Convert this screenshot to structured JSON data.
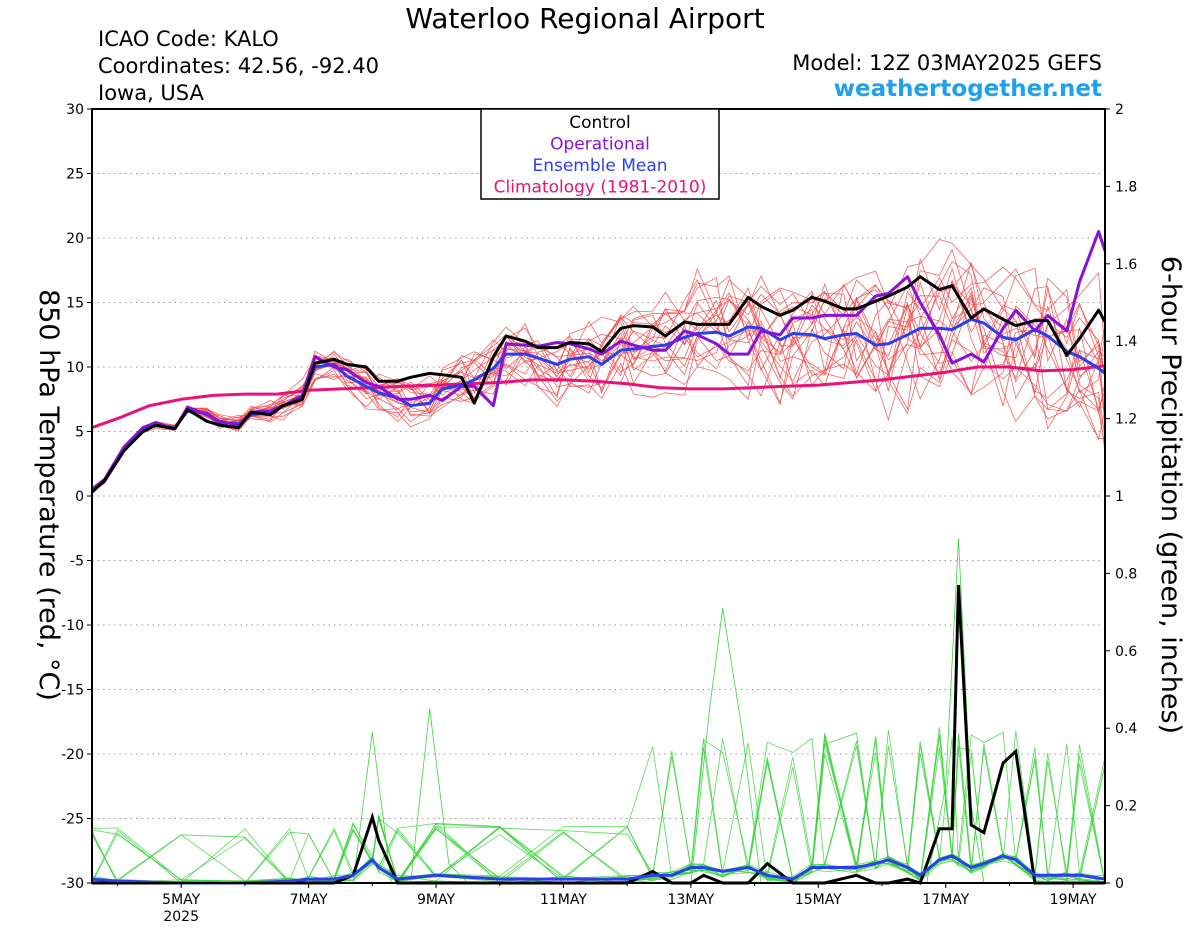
{
  "header": {
    "title": "Waterloo Regional Airport",
    "icao": "ICAO Code: KALO",
    "coordinates": "Coordinates: 42.56, -92.40",
    "region": "Iowa, USA",
    "model": "Model: 12Z 03MAY2025 GEFS",
    "website": "weathertogether.net"
  },
  "chart_data": {
    "type": "line",
    "y_left_label": "850 hPa Temperature (red, °C)",
    "y_right_label": "6-hour Precipitation (green, inches)",
    "y_left_range": [
      -30,
      30
    ],
    "y_right_range": [
      0,
      2
    ],
    "y_left_ticks": [
      "30",
      "25",
      "20",
      "15",
      "10",
      "5",
      "0",
      "-5",
      "-10",
      "-15",
      "-20",
      "-25",
      "-30"
    ],
    "y_right_ticks": [
      "2",
      "1.8",
      "1.6",
      "1.4",
      "1.2",
      "1",
      "0.8",
      "0.6",
      "0.4",
      "0.2",
      "0"
    ],
    "x_range_days": [
      3.6,
      19.5
    ],
    "x_ticks": [
      {
        "day": 5,
        "label": "5MAY",
        "sub": "2025"
      },
      {
        "day": 7,
        "label": "7MAY",
        "sub": ""
      },
      {
        "day": 9,
        "label": "9MAY",
        "sub": ""
      },
      {
        "day": 11,
        "label": "11MAY",
        "sub": ""
      },
      {
        "day": 13,
        "label": "13MAY",
        "sub": ""
      },
      {
        "day": 15,
        "label": "15MAY",
        "sub": ""
      },
      {
        "day": 17,
        "label": "17MAY",
        "sub": ""
      },
      {
        "day": 19,
        "label": "19MAY",
        "sub": ""
      }
    ],
    "legend": {
      "position": "top-center",
      "entries": [
        {
          "label": "Control",
          "color": "#000000"
        },
        {
          "label": "Operational",
          "color": "#8a12d8"
        },
        {
          "label": "Ensemble Mean",
          "color": "#2a3ff0"
        },
        {
          "label": "Climatology (1981-2010)",
          "color": "#e8127a"
        }
      ]
    },
    "grid": "horizontal dotted",
    "colors": {
      "members_temp": "#f04a4a",
      "members_precip": "#3ad43a",
      "control": "#000000",
      "operational": "#8a12d8",
      "mean": "#2a3ff0",
      "climatology": "#e8127a"
    },
    "temperature_series": [
      {
        "key": "control",
        "x": [
          3.6,
          3.8,
          4.1,
          4.4,
          4.6,
          4.9,
          5.1,
          5.4,
          5.6,
          5.9,
          6.1,
          6.4,
          6.6,
          6.9,
          7.1,
          7.4,
          7.6,
          7.9,
          8.1,
          8.4,
          8.6,
          8.9,
          9.1,
          9.4,
          9.6,
          9.9,
          10.1,
          10.4,
          10.6,
          10.9,
          11.1,
          11.4,
          11.6,
          11.9,
          12.1,
          12.4,
          12.6,
          12.9,
          13.1,
          13.4,
          13.6,
          13.9,
          14.1,
          14.4,
          14.6,
          14.9,
          15.1,
          15.4,
          15.6,
          15.9,
          16.1,
          16.4,
          16.6,
          16.9,
          17.1,
          17.4,
          17.6,
          17.9,
          18.1,
          18.4,
          18.6,
          18.9,
          19.1,
          19.4,
          19.5
        ],
        "y": [
          0.3,
          1.2,
          3.5,
          5.0,
          5.5,
          5.2,
          6.7,
          5.8,
          5.5,
          5.3,
          6.5,
          6.3,
          7.0,
          7.5,
          10.3,
          10.6,
          10.2,
          10.0,
          8.9,
          8.9,
          9.2,
          9.5,
          9.4,
          9.2,
          7.2,
          10.8,
          12.4,
          12.0,
          11.5,
          11.5,
          11.9,
          11.8,
          11.2,
          13.0,
          13.2,
          13.1,
          12.4,
          13.5,
          13.3,
          13.3,
          13.3,
          15.4,
          14.7,
          14.0,
          14.4,
          15.4,
          15.1,
          14.5,
          14.5,
          15.1,
          15.5,
          16.2,
          17.0,
          16.0,
          16.3,
          13.8,
          14.5,
          13.7,
          13.2,
          13.6,
          13.6,
          10.9,
          12.2,
          14.4,
          13.5
        ]
      },
      {
        "key": "operational",
        "x": [
          3.6,
          3.8,
          4.1,
          4.4,
          4.6,
          4.9,
          5.1,
          5.4,
          5.6,
          5.9,
          6.1,
          6.4,
          6.6,
          6.9,
          7.1,
          7.4,
          7.6,
          7.9,
          8.1,
          8.4,
          8.6,
          8.9,
          9.1,
          9.4,
          9.6,
          9.9,
          10.1,
          10.4,
          10.6,
          10.9,
          11.1,
          11.4,
          11.6,
          11.9,
          12.1,
          12.4,
          12.6,
          12.9,
          13.1,
          13.4,
          13.6,
          13.9,
          14.1,
          14.4,
          14.6,
          14.9,
          15.1,
          15.4,
          15.6,
          15.9,
          16.1,
          16.4,
          16.6,
          16.9,
          17.1,
          17.4,
          17.6,
          17.9,
          18.1,
          18.4,
          18.6,
          18.9,
          19.1,
          19.4,
          19.5
        ],
        "y": [
          0.5,
          1.3,
          3.8,
          5.3,
          5.7,
          5.2,
          6.9,
          6.3,
          5.8,
          5.5,
          6.5,
          6.6,
          7.0,
          7.8,
          10.8,
          10.0,
          9.8,
          8.8,
          8.5,
          7.5,
          7.5,
          7.8,
          7.4,
          8.5,
          8.5,
          7.0,
          11.8,
          11.7,
          11.6,
          11.9,
          11.8,
          11.4,
          11.0,
          12.0,
          11.7,
          11.3,
          11.3,
          12.8,
          12.5,
          11.8,
          11.0,
          11.0,
          12.8,
          12.5,
          13.8,
          13.8,
          14.0,
          14.0,
          14.0,
          15.5,
          15.7,
          17.0,
          15.0,
          12.5,
          10.3,
          11.0,
          10.4,
          13.0,
          14.4,
          12.8,
          14.0,
          12.8,
          16.6,
          20.5,
          19.0
        ]
      },
      {
        "key": "mean",
        "x": [
          3.6,
          3.8,
          4.1,
          4.4,
          4.6,
          4.9,
          5.1,
          5.4,
          5.6,
          5.9,
          6.1,
          6.4,
          6.6,
          6.9,
          7.1,
          7.4,
          7.6,
          7.9,
          8.1,
          8.4,
          8.6,
          8.9,
          9.1,
          9.4,
          9.6,
          9.9,
          10.1,
          10.4,
          10.6,
          10.9,
          11.1,
          11.4,
          11.6,
          11.9,
          12.1,
          12.4,
          12.6,
          12.9,
          13.1,
          13.4,
          13.6,
          13.9,
          14.1,
          14.4,
          14.6,
          14.9,
          15.1,
          15.4,
          15.6,
          15.9,
          16.1,
          16.4,
          16.6,
          16.9,
          17.1,
          17.4,
          17.6,
          17.9,
          18.1,
          18.4,
          18.6,
          18.9,
          19.1,
          19.4,
          19.5
        ],
        "y": [
          0.5,
          1.2,
          3.6,
          5.1,
          5.5,
          5.3,
          6.6,
          6.4,
          5.7,
          5.6,
          6.3,
          6.5,
          7.0,
          7.6,
          10.0,
          10.2,
          9.3,
          8.5,
          8.0,
          7.6,
          7.0,
          7.2,
          8.3,
          8.6,
          9.0,
          9.9,
          11.0,
          11.0,
          10.7,
          10.2,
          10.6,
          10.8,
          10.2,
          11.3,
          11.4,
          11.6,
          11.7,
          12.3,
          12.6,
          12.7,
          12.4,
          13.1,
          13.0,
          12.1,
          12.6,
          12.5,
          12.2,
          12.5,
          12.6,
          11.7,
          11.8,
          12.5,
          13.0,
          13.0,
          12.9,
          13.7,
          13.4,
          12.3,
          12.1,
          12.9,
          12.4,
          11.2,
          10.8,
          9.9,
          9.5
        ]
      },
      {
        "key": "climatology",
        "x": [
          3.6,
          4.0,
          4.5,
          5.0,
          5.5,
          6.0,
          6.5,
          7.0,
          7.5,
          8.0,
          8.5,
          9.0,
          9.5,
          10.0,
          10.5,
          11.0,
          11.5,
          12.0,
          12.5,
          13.0,
          13.5,
          14.0,
          14.5,
          15.0,
          15.5,
          16.0,
          16.5,
          17.0,
          17.5,
          18.0,
          18.5,
          19.0,
          19.5
        ],
        "y": [
          5.3,
          6.0,
          7.0,
          7.5,
          7.8,
          7.9,
          7.9,
          8.2,
          8.3,
          8.4,
          8.5,
          8.6,
          8.7,
          8.8,
          9.0,
          9.0,
          8.9,
          8.7,
          8.4,
          8.3,
          8.3,
          8.4,
          8.5,
          8.6,
          8.8,
          9.0,
          9.3,
          9.6,
          10.0,
          10.0,
          9.7,
          9.8,
          10.1
        ]
      }
    ],
    "precip_series": [
      {
        "key": "control",
        "x": [
          3.6,
          4.0,
          5.0,
          6.0,
          6.7,
          7.0,
          7.4,
          7.7,
          8.0,
          8.1,
          8.4,
          9.0,
          10.0,
          11.0,
          12.0,
          12.4,
          12.7,
          13.0,
          13.2,
          13.5,
          13.9,
          14.2,
          14.6,
          14.9,
          15.1,
          15.6,
          15.9,
          16.1,
          16.4,
          16.6,
          16.9,
          17.1,
          17.2,
          17.4,
          17.6,
          17.9,
          18.1,
          18.4,
          18.6,
          18.9,
          19.1,
          19.5
        ],
        "y": [
          0,
          0,
          0,
          0,
          0,
          0,
          0,
          0.02,
          0.17,
          0.11,
          0,
          0,
          0,
          0,
          0,
          0.03,
          0,
          0,
          0.02,
          0,
          0,
          0.05,
          0,
          0,
          0,
          0.02,
          0,
          0,
          0.01,
          0,
          0.14,
          0.14,
          0.77,
          0.15,
          0.13,
          0.31,
          0.34,
          0,
          0,
          0,
          0,
          0
        ]
      },
      {
        "key": "mean",
        "x": [
          3.6,
          4.0,
          5.0,
          6.0,
          6.7,
          7.0,
          7.4,
          7.7,
          8.0,
          8.1,
          8.4,
          9.0,
          10.0,
          11.0,
          12.0,
          12.4,
          12.7,
          13.0,
          13.2,
          13.5,
          13.9,
          14.2,
          14.6,
          14.9,
          15.1,
          15.6,
          15.9,
          16.1,
          16.4,
          16.6,
          16.9,
          17.1,
          17.2,
          17.4,
          17.6,
          17.9,
          18.1,
          18.4,
          18.6,
          18.9,
          19.1,
          19.5
        ],
        "y": [
          0.01,
          0.005,
          0,
          0,
          0.005,
          0.01,
          0.01,
          0.02,
          0.06,
          0.04,
          0.01,
          0.02,
          0.01,
          0.01,
          0.01,
          0.02,
          0.02,
          0.04,
          0.04,
          0.03,
          0.04,
          0.02,
          0.01,
          0.04,
          0.04,
          0.04,
          0.05,
          0.06,
          0.04,
          0.02,
          0.06,
          0.07,
          0.06,
          0.04,
          0.05,
          0.07,
          0.06,
          0.02,
          0.02,
          0.02,
          0.02,
          0.01
        ]
      },
      {
        "key": "member-peak-17may",
        "x": [
          16.7,
          17.0,
          17.2,
          17.4,
          17.6
        ],
        "y": [
          0,
          0.25,
          0.89,
          0.2,
          0
        ]
      },
      {
        "key": "member-peak-13may",
        "x": [
          13.0,
          13.3,
          13.5,
          13.8,
          14.1
        ],
        "y": [
          0,
          0.46,
          0.71,
          0.4,
          0
        ]
      },
      {
        "key": "member-peak-9may",
        "x": [
          8.6,
          8.9,
          9.2,
          9.5
        ],
        "y": [
          0,
          0.45,
          0.05,
          0
        ]
      },
      {
        "key": "member-peak-8may",
        "x": [
          7.7,
          8.0,
          8.3
        ],
        "y": [
          0,
          0.39,
          0
        ]
      }
    ]
  }
}
